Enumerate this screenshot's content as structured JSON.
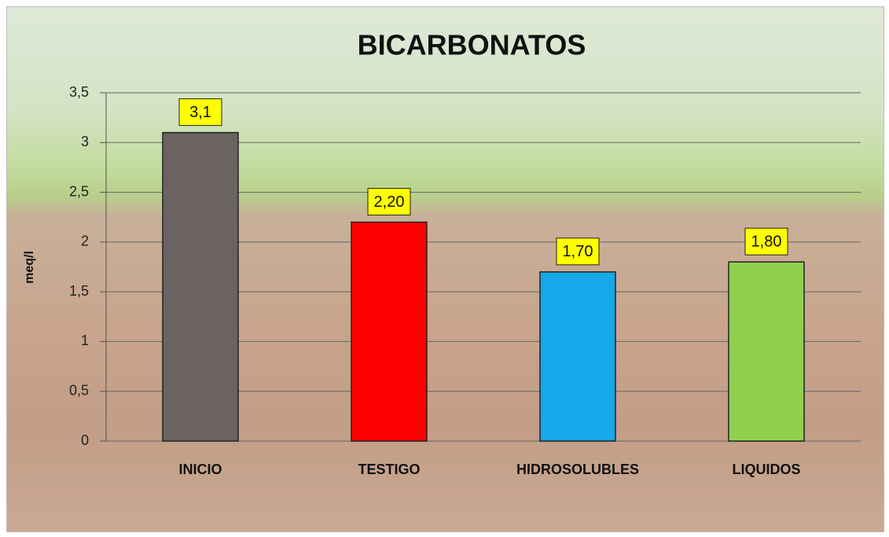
{
  "chart_data": {
    "type": "bar",
    "title": "BICARBONATOS",
    "y_label": "meq/l",
    "categories": [
      "INICIO",
      "TESTIGO",
      "HIDROSOLUBLES",
      "LIQUIDOS"
    ],
    "values": [
      3.1,
      2.2,
      1.7,
      1.8
    ],
    "value_labels": [
      "3,1",
      "2,20",
      "1,70",
      "1,80"
    ],
    "colors": [
      "#6b6362",
      "#ff0000",
      "#16a8e8",
      "#8fd14f"
    ],
    "ylim": [
      0,
      3.5
    ],
    "yticks": [
      0,
      {
        "value": 0.5,
        "label": "0,5"
      },
      1,
      {
        "value": 1.5,
        "label": "1,5"
      },
      2,
      {
        "value": 2.5,
        "label": "2,5"
      },
      3,
      {
        "value": 3.5,
        "label": "3,5"
      }
    ],
    "grid": true
  }
}
